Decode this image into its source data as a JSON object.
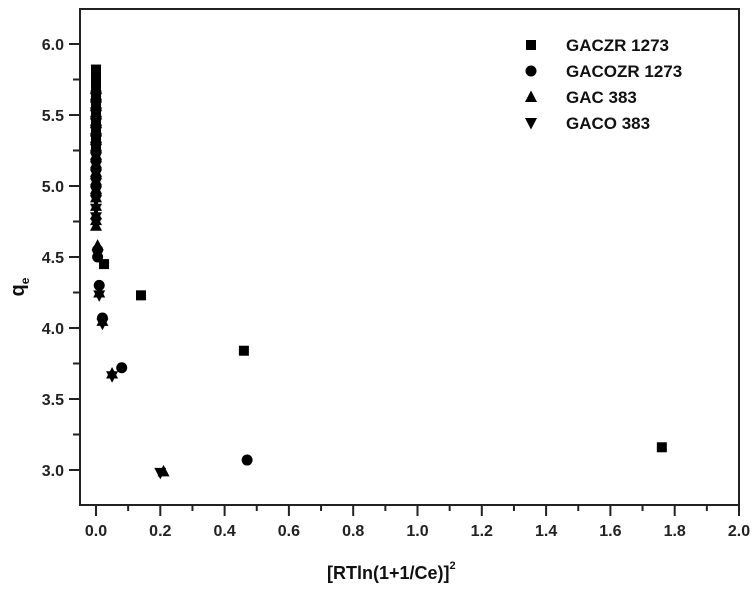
{
  "chart_data": {
    "type": "scatter",
    "title": "",
    "xlabel": "[RTln(1+1/Ce)]",
    "xlabel_superscript": "2",
    "ylabel": "q",
    "ylabel_subscript": "e",
    "xlim": [
      -0.04,
      2.0
    ],
    "ylim": [
      2.78,
      6.24
    ],
    "x_ticks": [
      "0.0",
      "0.2",
      "0.4",
      "0.6",
      "0.8",
      "1.0",
      "1.2",
      "1.4",
      "1.6",
      "1.8",
      "2.0"
    ],
    "y_ticks": [
      "3.0",
      "3.5",
      "4.0",
      "4.5",
      "5.0",
      "5.5",
      "6.0"
    ],
    "grid": false,
    "legend_position": "top-right",
    "series": [
      {
        "name": "GACZR 1273",
        "marker": "square",
        "x": [
          0.0,
          0.0,
          0.0,
          0.0,
          0.0,
          0.0,
          0.0,
          0.0,
          0.0,
          0.0,
          0.0,
          0.0,
          0.0,
          0.0,
          0.025,
          0.14,
          0.46,
          1.76
        ],
        "y": [
          5.82,
          5.78,
          5.74,
          5.7,
          5.66,
          5.62,
          5.58,
          5.54,
          5.5,
          5.45,
          5.4,
          5.35,
          5.3,
          5.25,
          4.45,
          4.23,
          3.84,
          3.16
        ]
      },
      {
        "name": "GACOZR 1273",
        "marker": "circle",
        "x": [
          0.0,
          0.0,
          0.0,
          0.0,
          0.0,
          0.0,
          0.0,
          0.0,
          0.0,
          0.0,
          0.0,
          0.0,
          0.0,
          0.005,
          0.005,
          0.01,
          0.02,
          0.08,
          0.47
        ],
        "y": [
          5.66,
          5.6,
          5.54,
          5.48,
          5.42,
          5.36,
          5.3,
          5.24,
          5.18,
          5.12,
          5.06,
          5.0,
          4.94,
          4.55,
          4.5,
          4.3,
          4.07,
          3.72,
          3.07
        ]
      },
      {
        "name": "GAC 383",
        "marker": "triangle-up",
        "x": [
          0.0,
          0.0,
          0.0,
          0.0,
          0.0,
          0.0,
          0.0,
          0.0,
          0.0,
          0.0,
          0.0,
          0.0,
          0.0,
          0.0,
          0.0,
          0.0,
          0.0,
          0.005,
          0.01,
          0.02,
          0.05,
          0.21
        ],
        "y": [
          5.64,
          5.58,
          5.52,
          5.46,
          5.4,
          5.34,
          5.28,
          5.22,
          5.16,
          5.1,
          5.04,
          4.98,
          4.92,
          4.86,
          4.8,
          4.76,
          4.72,
          4.58,
          4.25,
          4.05,
          3.68,
          2.99
        ]
      },
      {
        "name": "GACO 383",
        "marker": "triangle-down",
        "x": [
          0.0,
          0.0,
          0.0,
          0.0,
          0.0,
          0.0,
          0.0,
          0.0,
          0.0,
          0.0,
          0.0,
          0.0,
          0.0,
          0.0,
          0.0,
          0.0,
          0.005,
          0.01,
          0.02,
          0.05,
          0.2
        ],
        "y": [
          5.62,
          5.56,
          5.5,
          5.44,
          5.38,
          5.32,
          5.26,
          5.2,
          5.14,
          5.08,
          5.02,
          4.96,
          4.9,
          4.84,
          4.78,
          4.74,
          4.52,
          4.23,
          4.03,
          3.66,
          2.98
        ]
      }
    ]
  },
  "axes": {
    "x_title": "[RTln(1+1/Ce)]",
    "x_title_sup": "2",
    "y_title": "q",
    "y_title_sub": "e"
  },
  "legend": {
    "items": [
      {
        "label": "GACZR 1273",
        "marker": "square"
      },
      {
        "label": "GACOZR 1273",
        "marker": "circle"
      },
      {
        "label": "GAC 383",
        "marker": "triangle-up"
      },
      {
        "label": "GACO 383",
        "marker": "triangle-down"
      }
    ]
  },
  "colors": {
    "marker": "#000000",
    "axis": "#222222",
    "background": "#ffffff"
  }
}
